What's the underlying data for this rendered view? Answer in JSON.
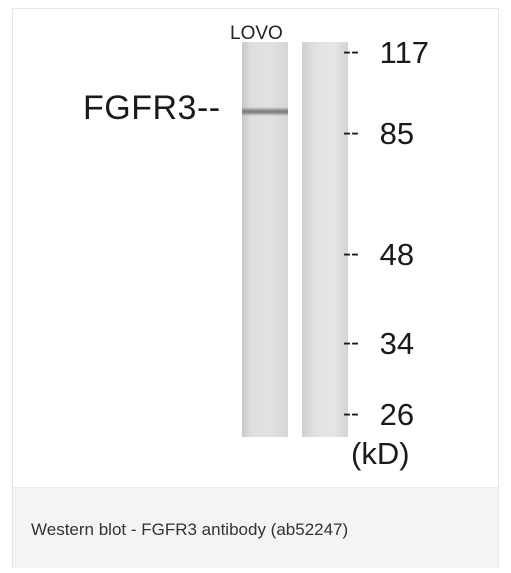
{
  "figure": {
    "lane_label": "LOVO",
    "protein_label": "FGFR3--",
    "markers": [
      {
        "dash": "--",
        "value": "117"
      },
      {
        "dash": "--",
        "value": "85"
      },
      {
        "dash": "--",
        "value": "48"
      },
      {
        "dash": "--",
        "value": "34"
      },
      {
        "dash": "--",
        "value": "26"
      }
    ],
    "unit": "(kD)"
  },
  "caption": "Western blot - FGFR3 antibody (ab52247)"
}
